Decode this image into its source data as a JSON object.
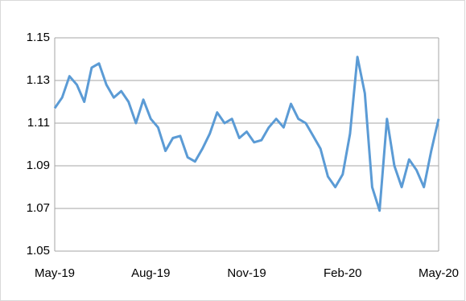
{
  "chart_data": {
    "type": "line",
    "categories": [
      "May-19",
      null,
      null,
      null,
      null,
      null,
      null,
      null,
      null,
      null,
      null,
      null,
      null,
      "Aug-19",
      null,
      null,
      null,
      null,
      null,
      null,
      null,
      null,
      null,
      null,
      null,
      null,
      "Nov-19",
      null,
      null,
      null,
      null,
      null,
      null,
      null,
      null,
      null,
      null,
      null,
      null,
      "Feb-20",
      null,
      null,
      null,
      null,
      null,
      null,
      null,
      null,
      null,
      null,
      null,
      null,
      "May-20"
    ],
    "values": [
      1.117,
      1.122,
      1.132,
      1.128,
      1.12,
      1.136,
      1.138,
      1.128,
      1.122,
      1.125,
      1.12,
      1.11,
      1.121,
      1.112,
      1.108,
      1.097,
      1.103,
      1.104,
      1.094,
      1.092,
      1.098,
      1.105,
      1.115,
      1.11,
      1.112,
      1.103,
      1.106,
      1.101,
      1.102,
      1.108,
      1.112,
      1.108,
      1.119,
      1.112,
      1.11,
      1.104,
      1.098,
      1.085,
      1.08,
      1.086,
      1.105,
      1.141,
      1.124,
      1.08,
      1.069,
      1.112,
      1.09,
      1.08,
      1.093,
      1.088,
      1.08,
      1.097,
      1.112
    ],
    "color": "#5b9bd5",
    "ylim": [
      1.05,
      1.15
    ],
    "yticks": [
      1.05,
      1.07,
      1.09,
      1.11,
      1.13,
      1.15
    ],
    "grid": true
  }
}
